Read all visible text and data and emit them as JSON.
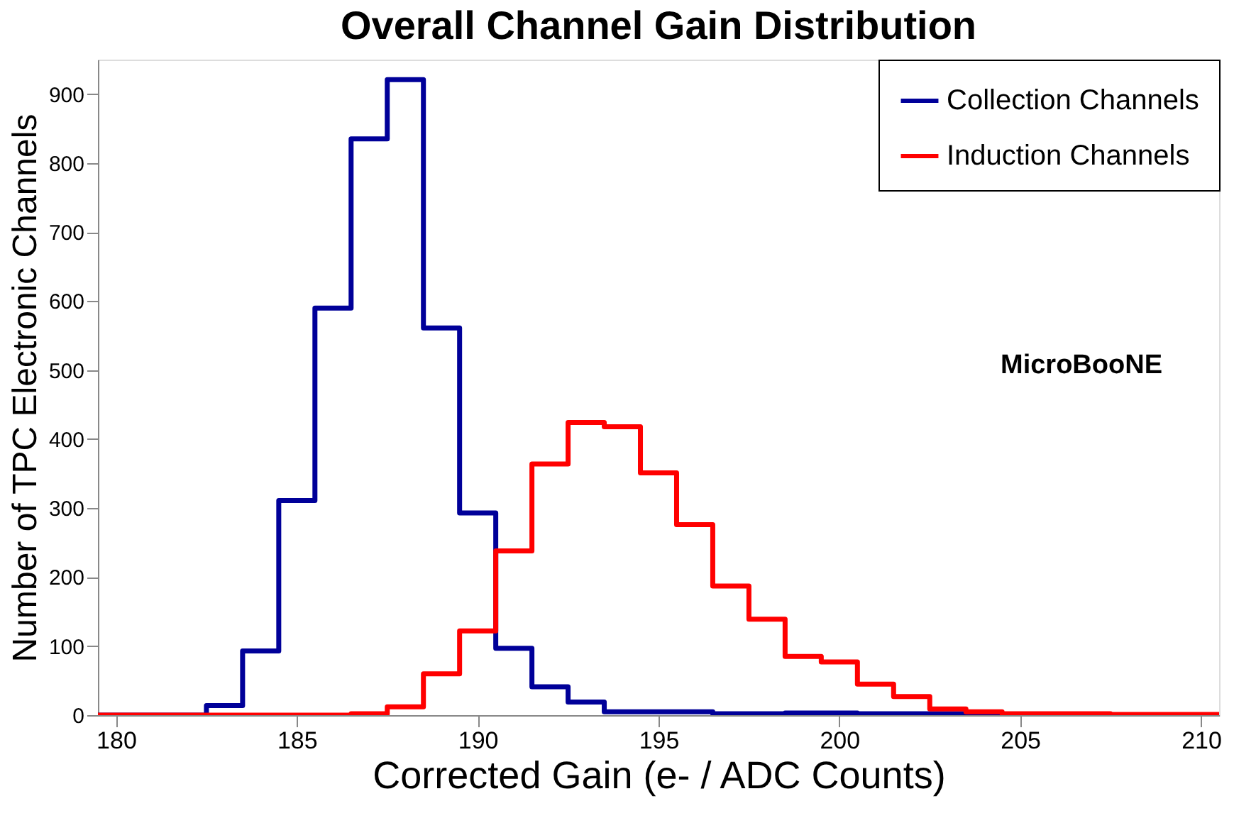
{
  "chart_data": {
    "type": "histogram",
    "title": "Overall Channel Gain Distribution",
    "xlabel": "Corrected Gain (e- / ADC Counts)",
    "ylabel": "Number of TPC Electronic Channels",
    "bins": [
      179.5,
      180.5,
      181.5,
      182.5,
      183.5,
      184.5,
      185.5,
      186.5,
      187.5,
      188.5,
      189.5,
      190.5,
      191.5,
      192.5,
      193.5,
      194.5,
      195.5,
      196.5,
      197.5,
      198.5,
      199.5,
      200.5,
      201.5,
      202.5,
      203.5,
      204.5,
      205.5,
      206.5,
      207.5,
      208.5,
      209.5,
      210.5
    ],
    "series": [
      {
        "name": "Collection Channels",
        "color": "#000099",
        "values": [
          0,
          0,
          0,
          14,
          93,
          311,
          590,
          835,
          921,
          561,
          293,
          97,
          41,
          19,
          5,
          5,
          5,
          2,
          2,
          3,
          3,
          2,
          2,
          2,
          1,
          0,
          0,
          0,
          0,
          0,
          0
        ]
      },
      {
        "name": "Induction Channels",
        "color": "#ff0000",
        "values": [
          0,
          0,
          0,
          0,
          0,
          0,
          0,
          2,
          12,
          60,
          122,
          238,
          364,
          424,
          418,
          351,
          276,
          187,
          139,
          85,
          77,
          45,
          27,
          9,
          5,
          2,
          2,
          2,
          1,
          1,
          1
        ]
      }
    ],
    "xlim": [
      179.5,
      210.5
    ],
    "xticks": [
      180,
      185,
      190,
      195,
      200,
      205,
      210
    ],
    "ylim": [
      0,
      950
    ],
    "yticks": [
      0,
      100,
      200,
      300,
      400,
      500,
      600,
      700,
      800,
      900
    ],
    "grid": false,
    "legend": "top right",
    "annotations": [
      "MicroBooNE"
    ]
  }
}
